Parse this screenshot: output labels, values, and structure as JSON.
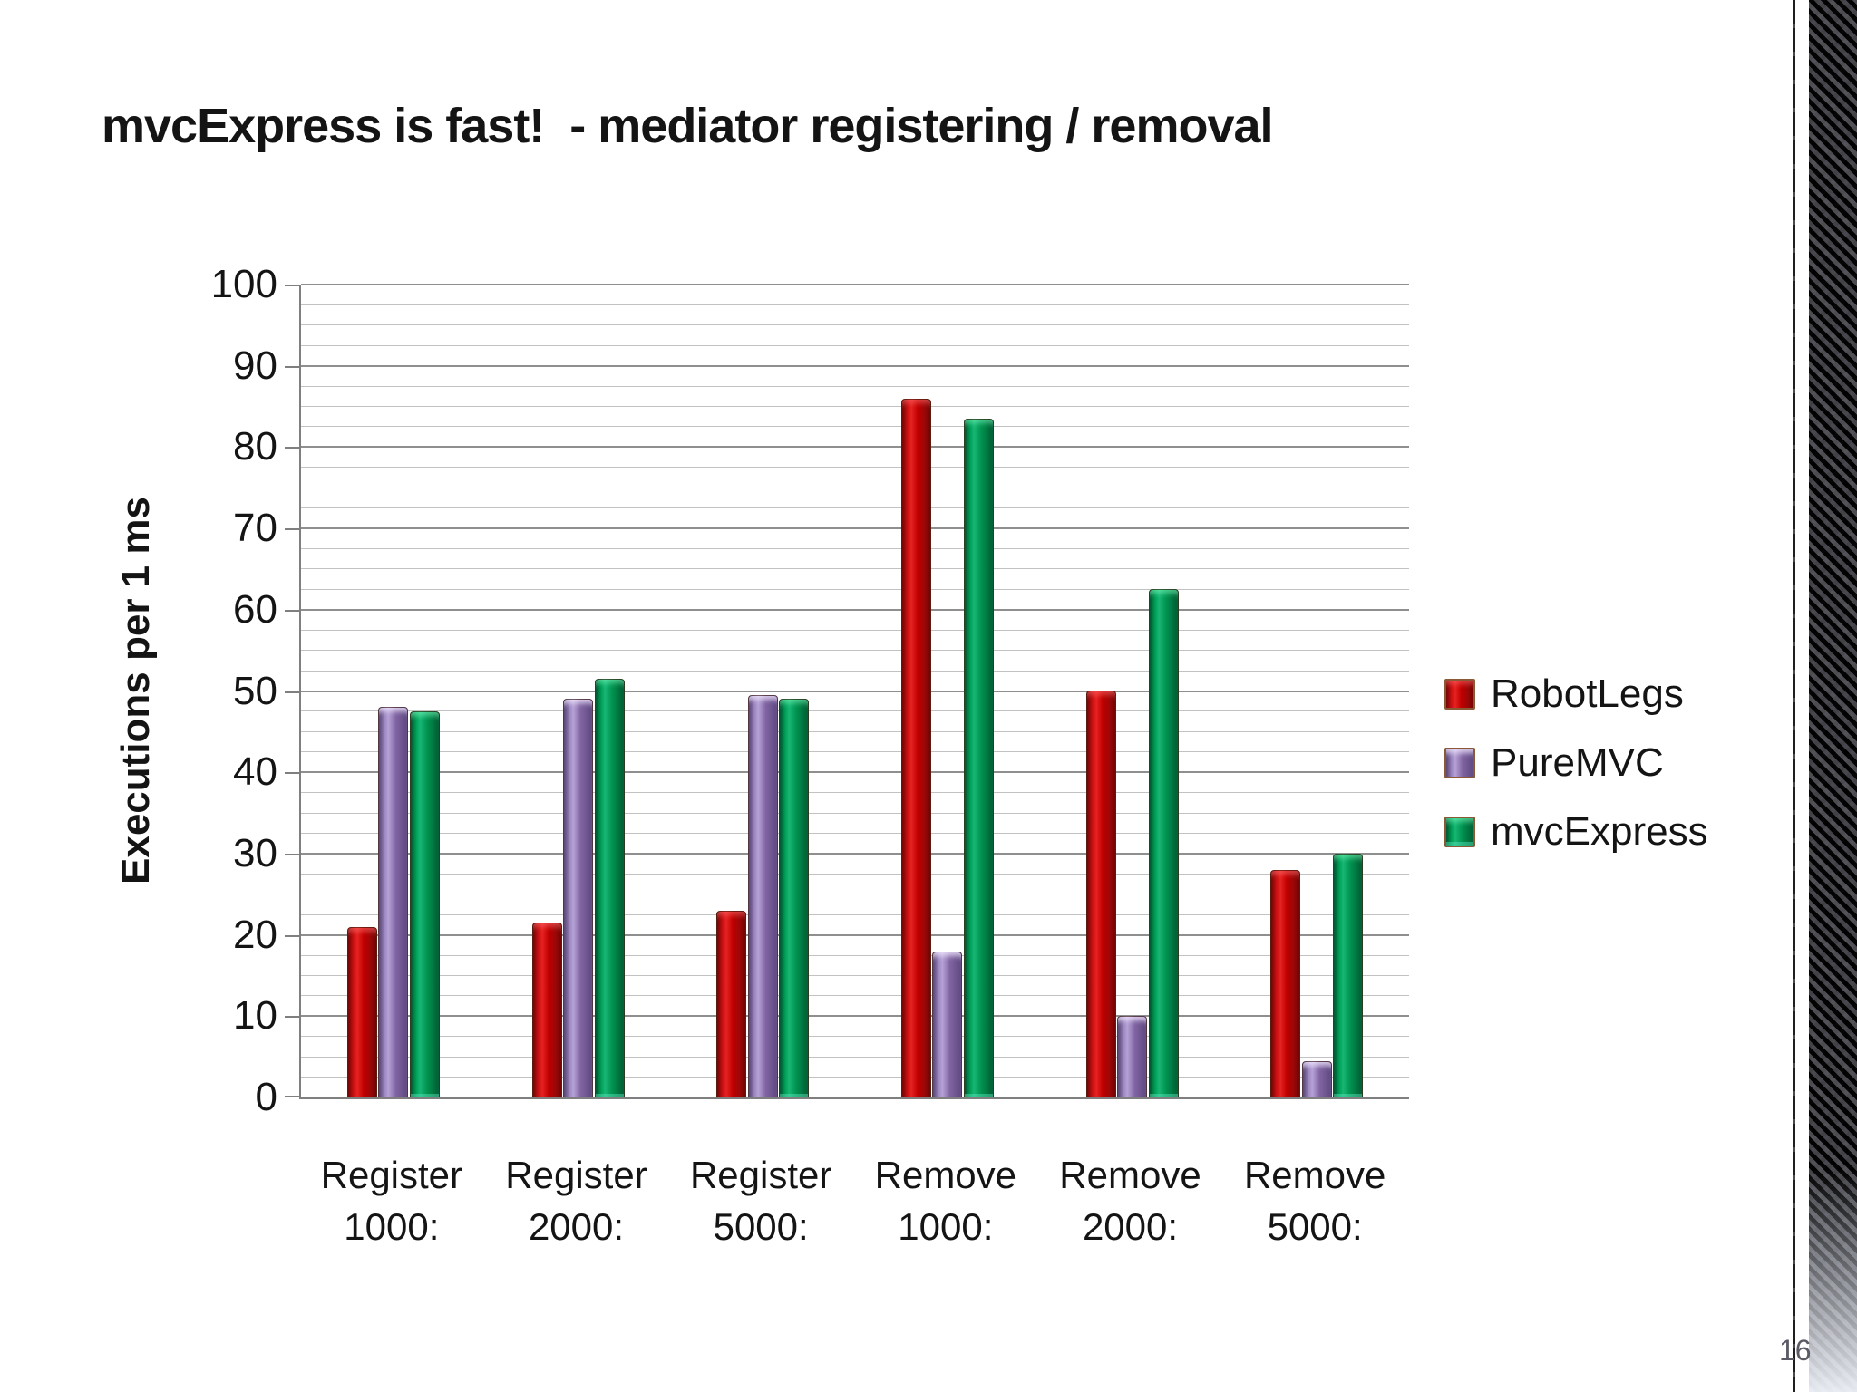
{
  "slide": {
    "title": "mvcExpress is fast!  - mediator registering / removal",
    "page_number": "16"
  },
  "chart_data": {
    "type": "bar",
    "title": "mvcExpress is fast!  - mediator registering / removal",
    "xlabel": "",
    "ylabel": "Executions per 1 ms",
    "ylim": [
      0,
      100
    ],
    "ytick_step": 10,
    "minor_gridline_step": 2.5,
    "grid": "horizontal",
    "legend_position": "right",
    "categories": [
      [
        "Register",
        "1000:"
      ],
      [
        "Register",
        "2000:"
      ],
      [
        "Register",
        "5000:"
      ],
      [
        "Remove",
        "1000:"
      ],
      [
        "Remove",
        "2000:"
      ],
      [
        "Remove",
        "5000:"
      ]
    ],
    "series": [
      {
        "name": "RobotLegs",
        "color": "#c00000",
        "values": [
          21,
          21.5,
          23,
          86,
          50,
          28
        ]
      },
      {
        "name": "PureMVC",
        "color": "#8064a2",
        "values": [
          48,
          49,
          49.5,
          18,
          10,
          4.5
        ]
      },
      {
        "name": "mvcExpress",
        "color": "#00994f",
        "values": [
          47.5,
          51.5,
          49,
          83.5,
          62.5,
          30
        ]
      }
    ]
  }
}
